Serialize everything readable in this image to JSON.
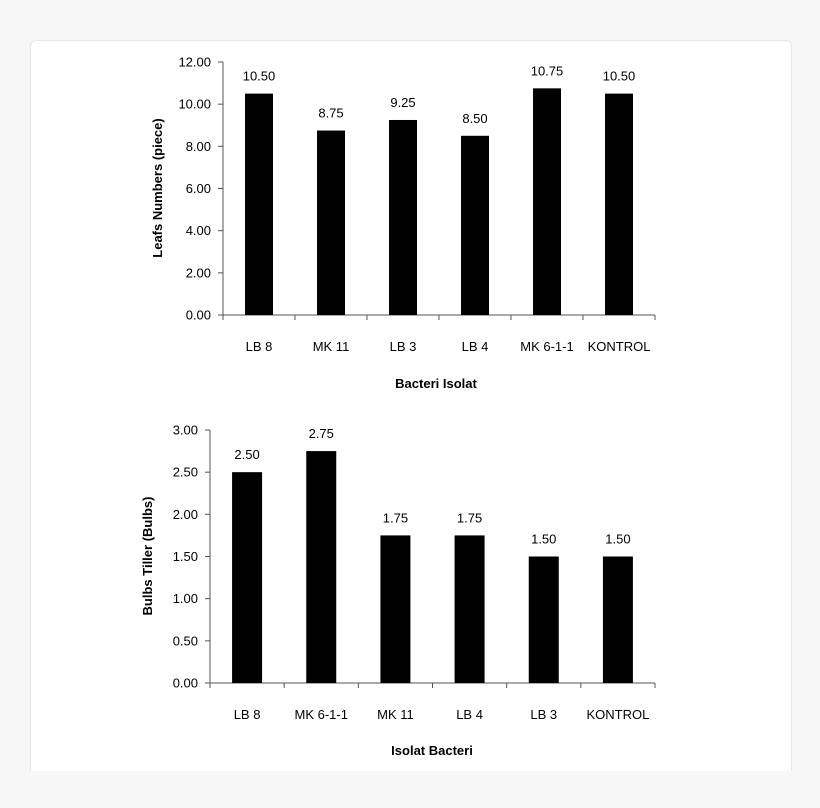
{
  "chart_data": [
    {
      "type": "bar",
      "categories": [
        "LB 8",
        "MK 11",
        "LB 3",
        "LB 4",
        "MK 6-1-1",
        "KONTROL"
      ],
      "values": [
        10.5,
        8.75,
        9.25,
        8.5,
        10.75,
        10.5
      ],
      "value_labels": [
        "10.50",
        "8.75",
        "9.25",
        "8.50",
        "10.75",
        "10.50"
      ],
      "y_ticks": [
        "0.00",
        "2.00",
        "4.00",
        "6.00",
        "8.00",
        "10.00",
        "12.00"
      ],
      "ylim": [
        0,
        12
      ],
      "xlabel": "Bacteri Isolat",
      "ylabel": "Leafs Numbers (piece)",
      "bar_color": "#000000",
      "grid": false
    },
    {
      "type": "bar",
      "categories": [
        "LB 8",
        "MK 6-1-1",
        "MK 11",
        "LB 4",
        "LB 3",
        "KONTROL"
      ],
      "values": [
        2.5,
        2.75,
        1.75,
        1.75,
        1.5,
        1.5
      ],
      "value_labels": [
        "2.50",
        "2.75",
        "1.75",
        "1.75",
        "1.50",
        "1.50"
      ],
      "y_ticks": [
        "0.00",
        "0.50",
        "1.00",
        "1.50",
        "2.00",
        "2.50",
        "3.00"
      ],
      "ylim": [
        0,
        3
      ],
      "xlabel": "Isolat Bacteri",
      "ylabel": "Bulbs Tiller (Bulbs)",
      "bar_color": "#000000",
      "grid": false
    }
  ]
}
